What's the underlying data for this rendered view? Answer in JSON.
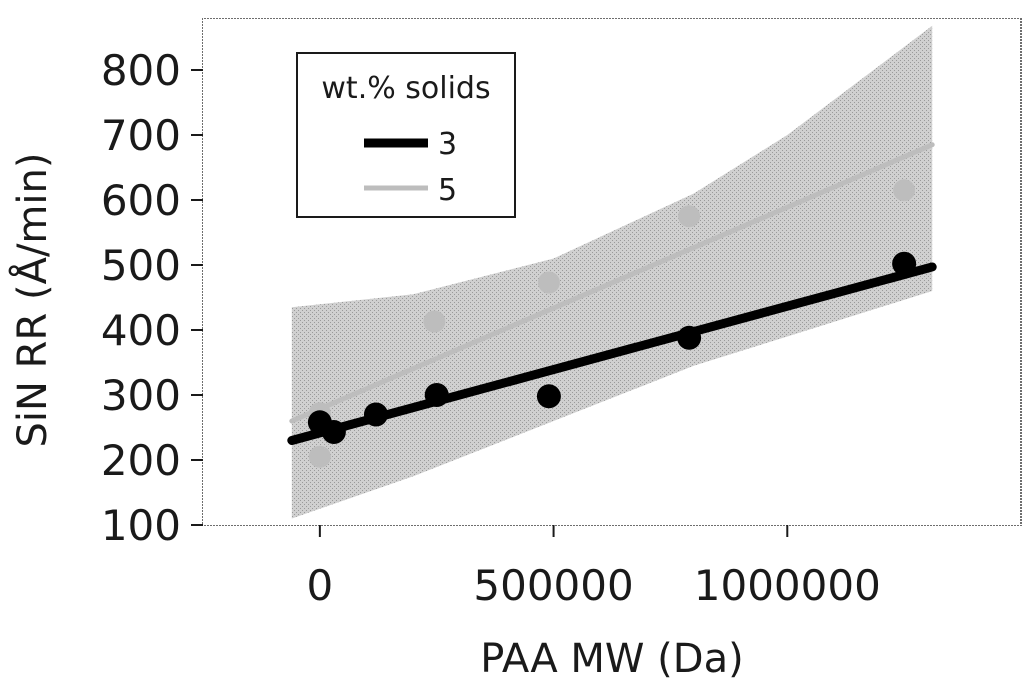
{
  "chart_data": {
    "type": "scatter",
    "xlabel": "PAA MW (Da)",
    "ylabel": "SiN RR (Å/min)",
    "xlim": [
      -250000,
      1500000
    ],
    "ylim": [
      100,
      880
    ],
    "xticks": [
      0,
      500000,
      1000000
    ],
    "xtick_labels": [
      "0",
      "500000",
      "1000000"
    ],
    "yticks": [
      100,
      200,
      300,
      400,
      500,
      600,
      700,
      800
    ],
    "ytick_labels": [
      "100",
      "200",
      "300",
      "400",
      "500",
      "600",
      "700",
      "800"
    ],
    "legend": {
      "title": "wt.% solids",
      "placement": "top-left",
      "entries": [
        "3",
        "5"
      ]
    },
    "series": [
      {
        "name": "3",
        "color": "#000000",
        "points": [
          {
            "x": 0,
            "y": 258
          },
          {
            "x": 30000,
            "y": 243
          },
          {
            "x": 120000,
            "y": 270
          },
          {
            "x": 250000,
            "y": 300
          },
          {
            "x": 490000,
            "y": 298
          },
          {
            "x": 790000,
            "y": 388
          },
          {
            "x": 1250000,
            "y": 502
          }
        ],
        "fit": {
          "x": [
            -60000,
            1310000
          ],
          "y": [
            230,
            497
          ]
        }
      },
      {
        "name": "5",
        "color": "#bdbdbd",
        "points": [
          {
            "x": 0,
            "y": 272
          },
          {
            "x": 0,
            "y": 205
          },
          {
            "x": 245000,
            "y": 413
          },
          {
            "x": 490000,
            "y": 473
          },
          {
            "x": 790000,
            "y": 575
          },
          {
            "x": 1250000,
            "y": 615
          }
        ],
        "fit": {
          "x": [
            -60000,
            1310000
          ],
          "y": [
            260,
            685
          ]
        },
        "confidence_band": {
          "x": [
            -60000,
            200000,
            500000,
            800000,
            1000000,
            1310000
          ],
          "upper": [
            435,
            455,
            510,
            610,
            700,
            868
          ],
          "lower": [
            110,
            175,
            260,
            345,
            390,
            460
          ]
        }
      }
    ]
  }
}
